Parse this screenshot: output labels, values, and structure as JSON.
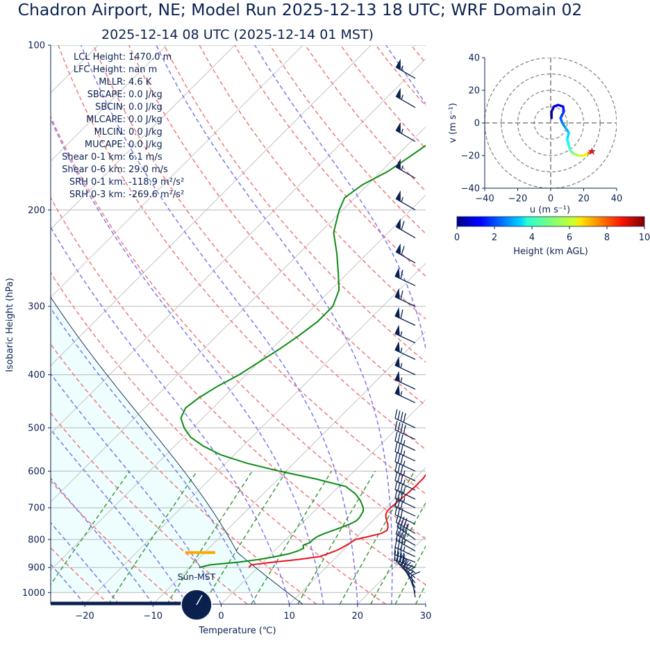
{
  "header": {
    "title": "Chadron Airport, NE; Model Run 2025-12-13 18 UTC; WRF Domain 02",
    "subtitle": "2025-12-14 08 UTC  (2025-12-14 01 MST)"
  },
  "colors": {
    "navy": "#0a2150",
    "temperature": "#e8121e",
    "dewpoint": "#0c8a12",
    "dry_adiabat": "#f07878",
    "moist_adiabat": "#7878f0",
    "mixing_ratio": "#3a9a3a",
    "cape_shade": "#eefdfd",
    "lcl_marker": "#ffa500"
  },
  "stats": [
    {
      "label": "LCL Height:",
      "value": "1470.0 m"
    },
    {
      "label": "LFC Height:",
      "value": "nan m"
    },
    {
      "label": "MLLR:",
      "value": "4.6 K"
    },
    {
      "label": "SBCAPE:",
      "value": "0.0 J/kg"
    },
    {
      "label": "SBCIN:",
      "value": "0.0 J/kg"
    },
    {
      "label": "MLCAPE:",
      "value": "0.0 J/kg"
    },
    {
      "label": "MLCIN:",
      "value": "0.0 J/kg"
    },
    {
      "label": "MUCAPE:",
      "value": "0.0 J/kg"
    },
    {
      "label": "Shear 0-1 km:",
      "value": "6.1 m/s"
    },
    {
      "label": "Shear 0-6 km:",
      "value": "29.0 m/s"
    },
    {
      "label": "SRH 0-1 km:",
      "value": "-118.9 m²/s²"
    },
    {
      "label": "SRH 0-3 km:",
      "value": "-269.6 m²/s²"
    }
  ],
  "sun_label": "Sun-MST",
  "chart_data": [
    {
      "type": "line",
      "name": "skew-t",
      "xlabel": "Temperature (℃)",
      "ylabel": "Isobaric Height (hPa)",
      "xlim": [
        -25,
        30
      ],
      "ylim": [
        1050,
        100
      ],
      "y_scale": "log",
      "skew_deg": 45,
      "x_ticks": [
        -20,
        -10,
        0,
        10,
        20,
        30
      ],
      "x_tick_labels": [
        "−20",
        "−10",
        "0",
        "10",
        "20",
        "30"
      ],
      "y_ticks": [
        100,
        200,
        300,
        400,
        500,
        600,
        700,
        800,
        900,
        1000
      ],
      "y_tick_labels": [
        "100",
        "200",
        "300",
        "400",
        "500",
        "600",
        "700",
        "800",
        "900",
        "1000"
      ],
      "grid": true,
      "temperature": {
        "p": [
          900,
          890,
          880,
          870,
          860,
          850,
          840,
          830,
          820,
          810,
          800,
          790,
          780,
          770,
          760,
          750,
          740,
          730,
          720,
          710,
          700,
          680,
          660,
          640,
          620,
          600,
          580,
          560,
          540,
          520,
          500,
          480,
          460,
          440,
          420,
          400,
          380,
          360,
          340,
          320,
          300,
          280,
          260,
          240,
          220,
          200,
          190,
          180,
          170,
          160,
          150,
          140,
          130,
          120,
          110,
          100
        ],
        "t": [
          -1.3,
          -1.4,
          1.5,
          4.8,
          7.4,
          8.2,
          8.9,
          9.4,
          9.7,
          10.0,
          10.2,
          11.7,
          13.1,
          13.5,
          13.2,
          12.7,
          12.1,
          11.5,
          11.0,
          10.7,
          10.7,
          10.9,
          11.1,
          11.2,
          11.2,
          10.9,
          10.5,
          10.0,
          9.4,
          8.6,
          7.6,
          6.4,
          5.0,
          3.3,
          1.4,
          -0.6,
          -2.9,
          -5.3,
          -7.7,
          -10.1,
          -12.4,
          -14.5,
          -16.8,
          -19.6,
          -22.7,
          -25.8,
          -27.3,
          -28.5,
          -29.3,
          -29.7,
          -30.0,
          -30.5,
          -31.5,
          -33.0,
          -35.0,
          -38.0
        ]
      },
      "dewpoint": {
        "p": [
          900,
          890,
          880,
          870,
          860,
          850,
          840,
          830,
          820,
          810,
          800,
          790,
          780,
          770,
          760,
          750,
          740,
          730,
          720,
          710,
          700,
          680,
          660,
          640,
          620,
          600,
          580,
          560,
          540,
          520,
          500,
          480,
          460,
          440,
          420,
          400,
          380,
          360,
          340,
          320,
          300,
          280,
          260,
          240,
          220,
          200,
          190,
          180,
          170,
          160,
          150,
          140,
          130,
          120,
          110,
          100
        ],
        "td": [
          -8.6,
          -7.4,
          -3.6,
          -1.0,
          0.9,
          2.5,
          3.4,
          3.9,
          3.4,
          4.0,
          4.0,
          4.2,
          4.8,
          5.6,
          6.4,
          7.1,
          7.6,
          7.6,
          7.4,
          7.2,
          6.7,
          5.3,
          3.5,
          1.0,
          -4.5,
          -11.0,
          -17.0,
          -22.0,
          -25.8,
          -29.0,
          -31.3,
          -33.2,
          -34.0,
          -33.5,
          -32.5,
          -31.0,
          -30.0,
          -28.9,
          -28.0,
          -27.3,
          -27.3,
          -28.8,
          -31.5,
          -34.5,
          -38.0,
          -40.5,
          -41.5,
          -40.8,
          -39.0,
          -38.0,
          -37.0,
          -38.0,
          -39.5,
          -41.5,
          -44.5,
          -48.0
        ]
      },
      "lcl": {
        "p": 845,
        "t_start": -5.2,
        "t_end": -1.0
      },
      "wind_barbs": [
        {
          "p": 1020,
          "speed_kt": 10,
          "dir": 350
        },
        {
          "p": 1000,
          "speed_kt": 15,
          "dir": 340
        },
        {
          "p": 980,
          "speed_kt": 20,
          "dir": 330
        },
        {
          "p": 960,
          "speed_kt": 25,
          "dir": 320
        },
        {
          "p": 940,
          "speed_kt": 30,
          "dir": 310
        },
        {
          "p": 920,
          "speed_kt": 35,
          "dir": 300
        },
        {
          "p": 900,
          "speed_kt": 40,
          "dir": 290
        },
        {
          "p": 880,
          "speed_kt": 35,
          "dir": 290
        },
        {
          "p": 860,
          "speed_kt": 35,
          "dir": 295
        },
        {
          "p": 840,
          "speed_kt": 35,
          "dir": 300
        },
        {
          "p": 820,
          "speed_kt": 40,
          "dir": 300
        },
        {
          "p": 800,
          "speed_kt": 40,
          "dir": 305
        },
        {
          "p": 780,
          "speed_kt": 45,
          "dir": 300
        },
        {
          "p": 750,
          "speed_kt": 30,
          "dir": 295
        },
        {
          "p": 725,
          "speed_kt": 30,
          "dir": 295
        },
        {
          "p": 700,
          "speed_kt": 35,
          "dir": 295
        },
        {
          "p": 675,
          "speed_kt": 35,
          "dir": 295
        },
        {
          "p": 650,
          "speed_kt": 35,
          "dir": 295
        },
        {
          "p": 625,
          "speed_kt": 35,
          "dir": 295
        },
        {
          "p": 600,
          "speed_kt": 35,
          "dir": 295
        },
        {
          "p": 575,
          "speed_kt": 35,
          "dir": 295
        },
        {
          "p": 550,
          "speed_kt": 35,
          "dir": 295
        },
        {
          "p": 525,
          "speed_kt": 40,
          "dir": 295
        },
        {
          "p": 500,
          "speed_kt": 40,
          "dir": 295
        },
        {
          "p": 450,
          "speed_kt": 55,
          "dir": 295
        },
        {
          "p": 425,
          "speed_kt": 55,
          "dir": 295
        },
        {
          "p": 400,
          "speed_kt": 55,
          "dir": 295
        },
        {
          "p": 375,
          "speed_kt": 55,
          "dir": 295
        },
        {
          "p": 350,
          "speed_kt": 55,
          "dir": 295
        },
        {
          "p": 325,
          "speed_kt": 60,
          "dir": 295
        },
        {
          "p": 300,
          "speed_kt": 60,
          "dir": 295
        },
        {
          "p": 275,
          "speed_kt": 60,
          "dir": 295
        },
        {
          "p": 250,
          "speed_kt": 60,
          "dir": 300
        },
        {
          "p": 225,
          "speed_kt": 60,
          "dir": 300
        },
        {
          "p": 200,
          "speed_kt": 55,
          "dir": 300
        },
        {
          "p": 175,
          "speed_kt": 55,
          "dir": 300
        },
        {
          "p": 150,
          "speed_kt": 55,
          "dir": 300
        },
        {
          "p": 130,
          "speed_kt": 55,
          "dir": 300
        },
        {
          "p": 115,
          "speed_kt": 55,
          "dir": 300
        },
        {
          "p": 100,
          "speed_kt": 55,
          "dir": 300
        }
      ],
      "sun_dial": {
        "needle_angle_deg": 30,
        "daylight_fraction": 0.38
      }
    },
    {
      "type": "line",
      "name": "hodograph",
      "xlabel": "u (m s⁻¹)",
      "ylabel": "v (m s⁻¹)",
      "xlim": [
        -40,
        40
      ],
      "ylim": [
        -40,
        40
      ],
      "ticks": [
        -40,
        -20,
        0,
        20,
        40
      ],
      "tick_labels": [
        "−40",
        "−20",
        "0",
        "20",
        "40"
      ],
      "rings": [
        10,
        20,
        30,
        40
      ],
      "points": [
        {
          "u": 0.5,
          "v": 3,
          "h": 0.1
        },
        {
          "u": 0.5,
          "v": 7,
          "h": 0.3
        },
        {
          "u": 2,
          "v": 10,
          "h": 0.6
        },
        {
          "u": 4.5,
          "v": 11,
          "h": 0.9
        },
        {
          "u": 7.5,
          "v": 10,
          "h": 1.2
        },
        {
          "u": 8,
          "v": 7,
          "h": 1.6
        },
        {
          "u": 6,
          "v": 3,
          "h": 2.0
        },
        {
          "u": 7,
          "v": 0,
          "h": 2.4
        },
        {
          "u": 9,
          "v": -3,
          "h": 2.8
        },
        {
          "u": 11,
          "v": -6,
          "h": 3.2
        },
        {
          "u": 10,
          "v": -10,
          "h": 3.6
        },
        {
          "u": 11,
          "v": -14,
          "h": 4.0
        },
        {
          "u": 12,
          "v": -17,
          "h": 4.5
        },
        {
          "u": 14,
          "v": -19,
          "h": 5.0
        },
        {
          "u": 17,
          "v": -20,
          "h": 5.5
        },
        {
          "u": 20,
          "v": -20,
          "h": 6.0
        },
        {
          "u": 23,
          "v": -18.5,
          "h": 6.8
        },
        {
          "u": 25,
          "v": -17.5,
          "h": 8.5
        }
      ],
      "end_marker": {
        "u": 25,
        "v": -17.5
      }
    },
    {
      "type": "heatmap",
      "name": "height-colorbar",
      "xlabel": "Height (km AGL)",
      "range": [
        0,
        10
      ],
      "ticks": [
        0,
        2,
        4,
        6,
        8,
        10
      ],
      "tick_labels": [
        "0",
        "2",
        "4",
        "6",
        "8",
        "10"
      ],
      "colormap": "jet"
    }
  ]
}
